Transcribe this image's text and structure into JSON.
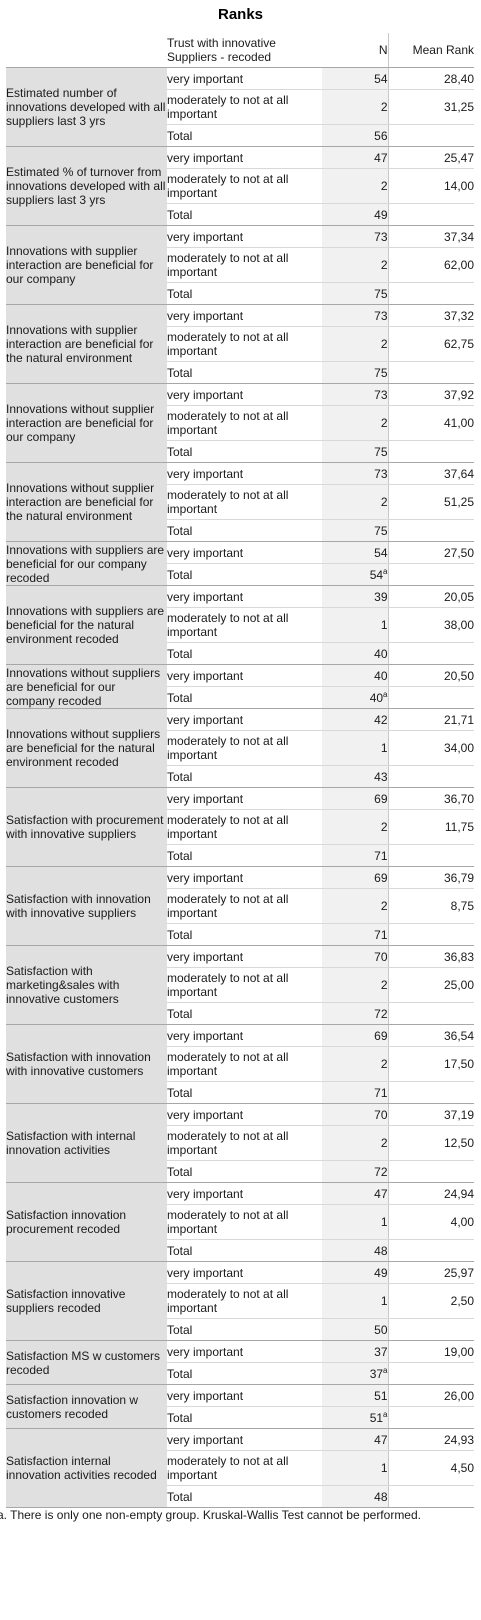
{
  "title": "Ranks",
  "headers": {
    "group": "Trust with innovative Suppliers - recoded",
    "n": "N",
    "mean_rank": "Mean Rank"
  },
  "footnote": "a. There is only one non-empty group. Kruskal-Wallis Test cannot be performed.",
  "variables": [
    {
      "label": "Estimated number of innovations developed with all suppliers last 3 yrs",
      "rows": [
        {
          "group": "very important",
          "n": "54",
          "mean_rank": "28,40"
        },
        {
          "group": "moderately to not at all important",
          "n": "2",
          "mean_rank": "31,25"
        },
        {
          "group": "Total",
          "n": "56",
          "mean_rank": ""
        }
      ]
    },
    {
      "label": "Estimated % of turnover from innovations developed with all suppliers last 3 yrs",
      "rows": [
        {
          "group": "very important",
          "n": "47",
          "mean_rank": "25,47"
        },
        {
          "group": "moderately to not at all important",
          "n": "2",
          "mean_rank": "14,00"
        },
        {
          "group": "Total",
          "n": "49",
          "mean_rank": ""
        }
      ]
    },
    {
      "label": "Innovations with supplier interaction are beneficial for our company",
      "rows": [
        {
          "group": "very important",
          "n": "73",
          "mean_rank": "37,34"
        },
        {
          "group": "moderately to not at all important",
          "n": "2",
          "mean_rank": "62,00"
        },
        {
          "group": "Total",
          "n": "75",
          "mean_rank": ""
        }
      ]
    },
    {
      "label": "Innovations with supplier interaction are beneficial for the natural environment",
      "rows": [
        {
          "group": "very important",
          "n": "73",
          "mean_rank": "37,32"
        },
        {
          "group": "moderately to not at all important",
          "n": "2",
          "mean_rank": "62,75"
        },
        {
          "group": "Total",
          "n": "75",
          "mean_rank": ""
        }
      ]
    },
    {
      "label": "Innovations without supplier interaction are beneficial for our company",
      "rows": [
        {
          "group": "very important",
          "n": "73",
          "mean_rank": "37,92"
        },
        {
          "group": "moderately to not at all important",
          "n": "2",
          "mean_rank": "41,00"
        },
        {
          "group": "Total",
          "n": "75",
          "mean_rank": ""
        }
      ]
    },
    {
      "label": "Innovations without supplier interaction are beneficial for the natural environment",
      "rows": [
        {
          "group": "very important",
          "n": "73",
          "mean_rank": "37,64"
        },
        {
          "group": "moderately to not at all important",
          "n": "2",
          "mean_rank": "51,25"
        },
        {
          "group": "Total",
          "n": "75",
          "mean_rank": ""
        }
      ]
    },
    {
      "label": "Innovations with suppliers are beneficial for our company recoded",
      "rows": [
        {
          "group": "very important",
          "n": "54",
          "mean_rank": "27,50"
        },
        {
          "group": "Total",
          "n": "54",
          "sup": "a",
          "mean_rank": ""
        }
      ]
    },
    {
      "label": "Innovations with suppliers are beneficial for the natural environment recoded",
      "rows": [
        {
          "group": "very important",
          "n": "39",
          "mean_rank": "20,05"
        },
        {
          "group": "moderately to not at all important",
          "n": "1",
          "mean_rank": "38,00"
        },
        {
          "group": "Total",
          "n": "40",
          "mean_rank": ""
        }
      ]
    },
    {
      "label": "Innovations without suppliers are beneficial for our company recoded",
      "rows": [
        {
          "group": "very important",
          "n": "40",
          "mean_rank": "20,50"
        },
        {
          "group": "Total",
          "n": "40",
          "sup": "a",
          "mean_rank": ""
        }
      ]
    },
    {
      "label": "Innovations without suppliers are beneficial for the natural environment recoded",
      "rows": [
        {
          "group": "very important",
          "n": "42",
          "mean_rank": "21,71"
        },
        {
          "group": "moderately to not at all important",
          "n": "1",
          "mean_rank": "34,00"
        },
        {
          "group": "Total",
          "n": "43",
          "mean_rank": ""
        }
      ]
    },
    {
      "label": "Satisfaction with procurement with innovative suppliers",
      "rows": [
        {
          "group": "very important",
          "n": "69",
          "mean_rank": "36,70"
        },
        {
          "group": "moderately to not at all important",
          "n": "2",
          "mean_rank": "11,75"
        },
        {
          "group": "Total",
          "n": "71",
          "mean_rank": ""
        }
      ]
    },
    {
      "label": "Satisfaction with innovation with innovative suppliers",
      "rows": [
        {
          "group": "very important",
          "n": "69",
          "mean_rank": "36,79"
        },
        {
          "group": "moderately to not at all important",
          "n": "2",
          "mean_rank": "8,75"
        },
        {
          "group": "Total",
          "n": "71",
          "mean_rank": ""
        }
      ]
    },
    {
      "label": "Satisfaction with marketing&sales with innovative customers",
      "rows": [
        {
          "group": "very important",
          "n": "70",
          "mean_rank": "36,83"
        },
        {
          "group": "moderately to not at all important",
          "n": "2",
          "mean_rank": "25,00"
        },
        {
          "group": "Total",
          "n": "72",
          "mean_rank": ""
        }
      ]
    },
    {
      "label": "Satisfaction with innovation with innovative customers",
      "rows": [
        {
          "group": "very important",
          "n": "69",
          "mean_rank": "36,54"
        },
        {
          "group": "moderately to not at all important",
          "n": "2",
          "mean_rank": "17,50"
        },
        {
          "group": "Total",
          "n": "71",
          "mean_rank": ""
        }
      ]
    },
    {
      "label": "Satisfaction with internal innovation activities",
      "rows": [
        {
          "group": "very important",
          "n": "70",
          "mean_rank": "37,19"
        },
        {
          "group": "moderately to not at all important",
          "n": "2",
          "mean_rank": "12,50"
        },
        {
          "group": "Total",
          "n": "72",
          "mean_rank": ""
        }
      ]
    },
    {
      "label": "Satisfaction innovation procurement recoded",
      "rows": [
        {
          "group": "very important",
          "n": "47",
          "mean_rank": "24,94"
        },
        {
          "group": "moderately to not at all important",
          "n": "1",
          "mean_rank": "4,00"
        },
        {
          "group": "Total",
          "n": "48",
          "mean_rank": ""
        }
      ]
    },
    {
      "label": "Satisfaction innovative suppliers recoded",
      "rows": [
        {
          "group": "very important",
          "n": "49",
          "mean_rank": "25,97"
        },
        {
          "group": "moderately to not at all important",
          "n": "1",
          "mean_rank": "2,50"
        },
        {
          "group": "Total",
          "n": "50",
          "mean_rank": ""
        }
      ]
    },
    {
      "label": "Satisfaction MS w customers recoded",
      "rows": [
        {
          "group": "very important",
          "n": "37",
          "mean_rank": "19,00"
        },
        {
          "group": "Total",
          "n": "37",
          "sup": "a",
          "mean_rank": ""
        }
      ]
    },
    {
      "label": "Satisfaction innovation w customers recoded",
      "rows": [
        {
          "group": "very important",
          "n": "51",
          "mean_rank": "26,00"
        },
        {
          "group": "Total",
          "n": "51",
          "sup": "a",
          "mean_rank": ""
        }
      ]
    },
    {
      "label": "Satisfaction internal innovation activities recoded",
      "rows": [
        {
          "group": "very important",
          "n": "47",
          "mean_rank": "24,93"
        },
        {
          "group": "moderately to not at all important",
          "n": "1",
          "mean_rank": "4,50"
        },
        {
          "group": "Total",
          "n": "48",
          "mean_rank": ""
        }
      ]
    }
  ]
}
